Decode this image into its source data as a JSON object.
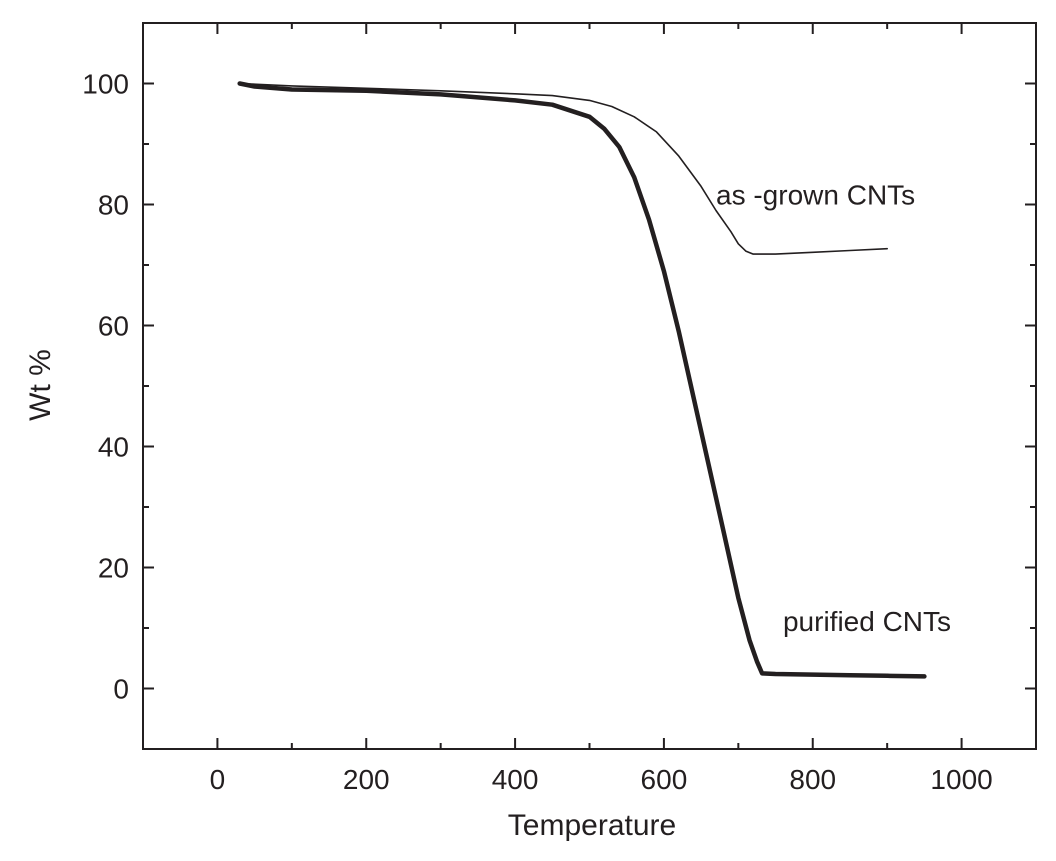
{
  "chart_data": {
    "type": "line",
    "title": "",
    "xlabel": "Temperature",
    "ylabel": "Wt %",
    "xlim": [
      -100,
      1100
    ],
    "ylim": [
      -10,
      110
    ],
    "x_ticks": [
      0,
      200,
      400,
      600,
      800,
      1000
    ],
    "x_tick_labels": [
      "0",
      "200",
      "400",
      "600",
      "800",
      "1000"
    ],
    "y_ticks": [
      0,
      20,
      40,
      60,
      80,
      100
    ],
    "y_tick_labels": [
      "0",
      "20",
      "40",
      "60",
      "80",
      "100"
    ],
    "grid": false,
    "colors": {
      "line": "#231f20",
      "axis": "#231f20"
    },
    "series": [
      {
        "name": "as -grown CNTs",
        "style": "thin",
        "x": [
          30,
          100,
          200,
          300,
          400,
          450,
          500,
          530,
          560,
          590,
          620,
          650,
          670,
          690,
          700,
          710,
          720,
          750,
          800,
          850,
          900
        ],
        "y": [
          100,
          99.6,
          99.2,
          98.8,
          98.3,
          98,
          97.2,
          96.2,
          94.5,
          92,
          88,
          83,
          79,
          75.5,
          73.5,
          72.3,
          71.8,
          71.8,
          72.1,
          72.4,
          72.7
        ]
      },
      {
        "name": "purified CNTs",
        "style": "thick",
        "x": [
          30,
          50,
          100,
          200,
          300,
          400,
          450,
          500,
          520,
          540,
          560,
          580,
          600,
          620,
          640,
          660,
          680,
          700,
          715,
          725,
          732,
          750,
          800,
          850,
          900,
          950
        ],
        "y": [
          100,
          99.5,
          99,
          98.8,
          98.2,
          97.2,
          96.5,
          94.5,
          92.5,
          89.5,
          84.5,
          77.5,
          69,
          59,
          48,
          37,
          26,
          15,
          8,
          4.5,
          2.5,
          2.4,
          2.3,
          2.2,
          2.1,
          2
        ]
      }
    ],
    "annotations": [
      {
        "text": "as -grown CNTs",
        "x": 670,
        "y": 80
      },
      {
        "text": "purified CNTs",
        "x": 760,
        "y": 9.5
      }
    ]
  }
}
